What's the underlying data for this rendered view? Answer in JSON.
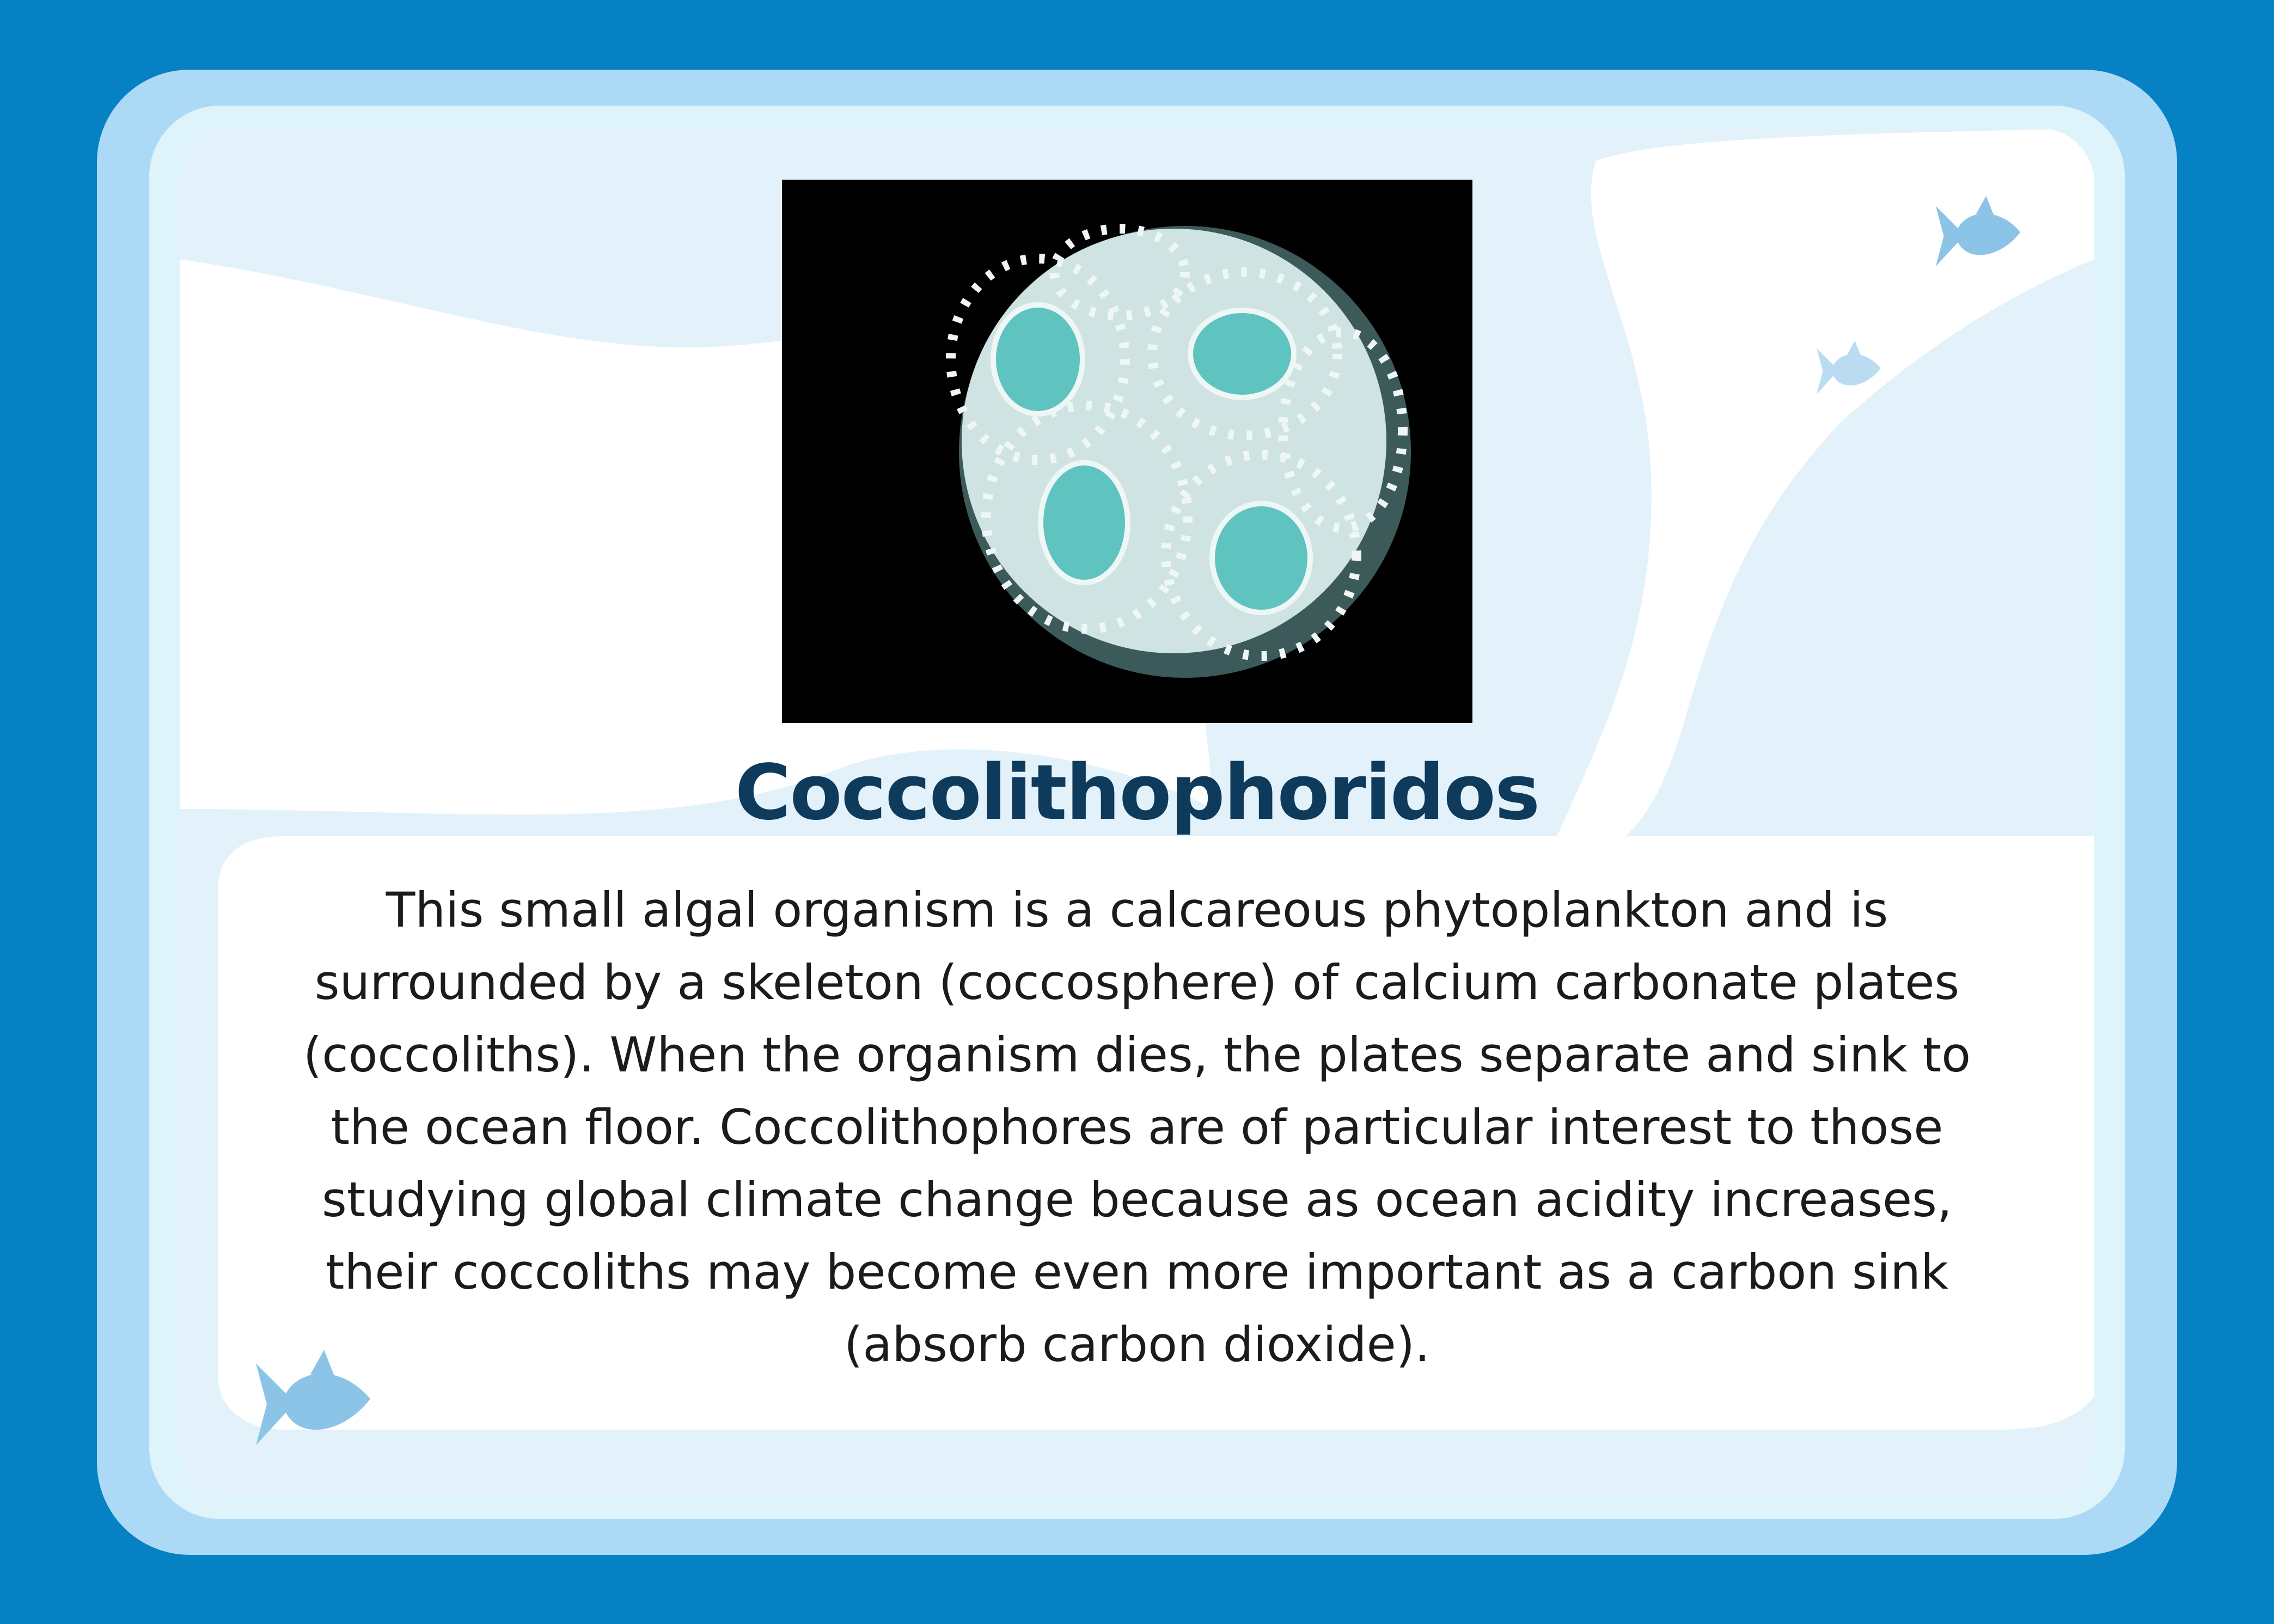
{
  "card": {
    "title": "Coccolithophoridos",
    "description": "This small algal organism is a calcareous phytoplankton and is surrounded by a skeleton (coccosphere) of calcium carbonate plates (coccoliths). When the organism dies, the plates separate and sink to the ocean floor. Coccolithophores are of particular interest to those studying global climate change because as ocean acidity increases, their coccoliths may become even more important as a carbon sink (absorb carbon dioxide).",
    "icons": [
      "fish-icon",
      "fish-icon",
      "fish-icon"
    ]
  },
  "colors": {
    "background": "#0581c4",
    "outer_frame": "#acd9f5",
    "panel": "#e3f1fa",
    "title": "#0e3a5b",
    "text": "#1b1b1b",
    "fish": "#8cc4e8"
  }
}
